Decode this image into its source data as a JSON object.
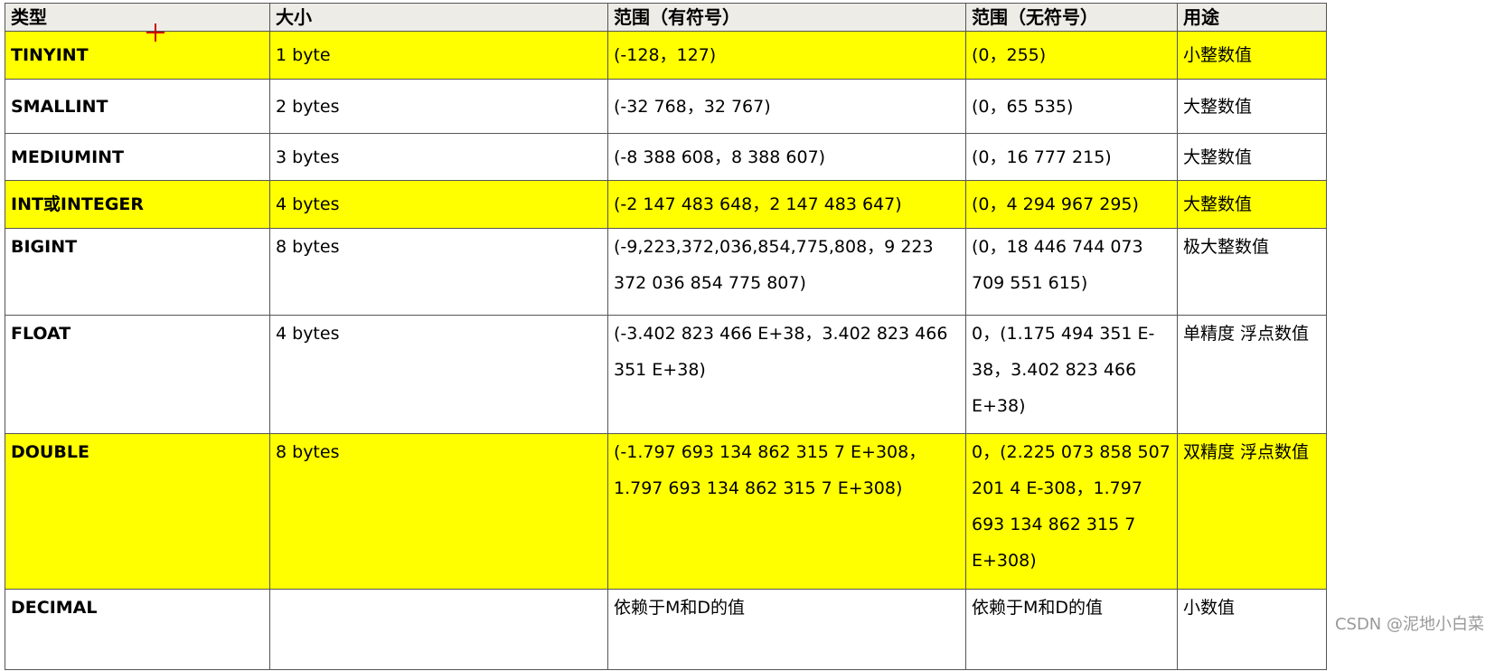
{
  "headers": [
    "类型",
    "大小",
    "范围（有符号）",
    "范围（无符号）",
    "用途"
  ],
  "rows": [
    {
      "type": "TINYINT",
      "size": "1 byte",
      "signed": "(-128，127)",
      "unsigned": "(0，255)",
      "use": "小整数值",
      "highlight": true
    },
    {
      "type": "SMALLINT",
      "size": "2 bytes",
      "signed": "(-32 768，32 767)",
      "unsigned": "(0，65 535)",
      "use": "大整数值",
      "highlight": false
    },
    {
      "type": "MEDIUMINT",
      "size": "3 bytes",
      "signed": "(-8 388 608，8 388 607)",
      "unsigned": "(0，16 777 215)",
      "use": "大整数值",
      "highlight": false
    },
    {
      "type": "INT或INTEGER",
      "size": "4 bytes",
      "signed": "(-2 147 483 648，2 147 483 647)",
      "unsigned": "(0，4 294 967 295)",
      "use": "大整数值",
      "highlight": true
    },
    {
      "type": "BIGINT",
      "size": "8 bytes",
      "signed": "(-9,223,372,036,854,775,808，9 223 372 036 854 775 807)",
      "unsigned": "(0，18 446 744 073 709 551 615)",
      "use": "极大整数值",
      "highlight": false
    },
    {
      "type": "FLOAT",
      "size": "4 bytes",
      "signed": "(-3.402 823 466 E+38，3.402 823 466 351 E+38)",
      "unsigned": "0，(1.175 494 351 E-38，3.402 823 466 E+38)",
      "use": "单精度 浮点数值",
      "highlight": false
    },
    {
      "type": "DOUBLE",
      "size": "8 bytes",
      "signed": "(-1.797 693 134 862 315 7 E+308，1.797 693 134 862 315 7 E+308)",
      "unsigned": "0，(2.225 073 858 507 201 4 E-308，1.797 693 134 862 315 7 E+308)",
      "use": "双精度 浮点数值",
      "highlight": true
    },
    {
      "type": "DECIMAL",
      "size": "",
      "signed": "依赖于M和D的值",
      "unsigned": "依赖于M和D的值",
      "use": "小数值",
      "highlight": false
    }
  ],
  "watermark": "CSDN @泥地小白菜",
  "colors": {
    "highlight": "#ffff00",
    "header_bg": "#eeece6"
  }
}
